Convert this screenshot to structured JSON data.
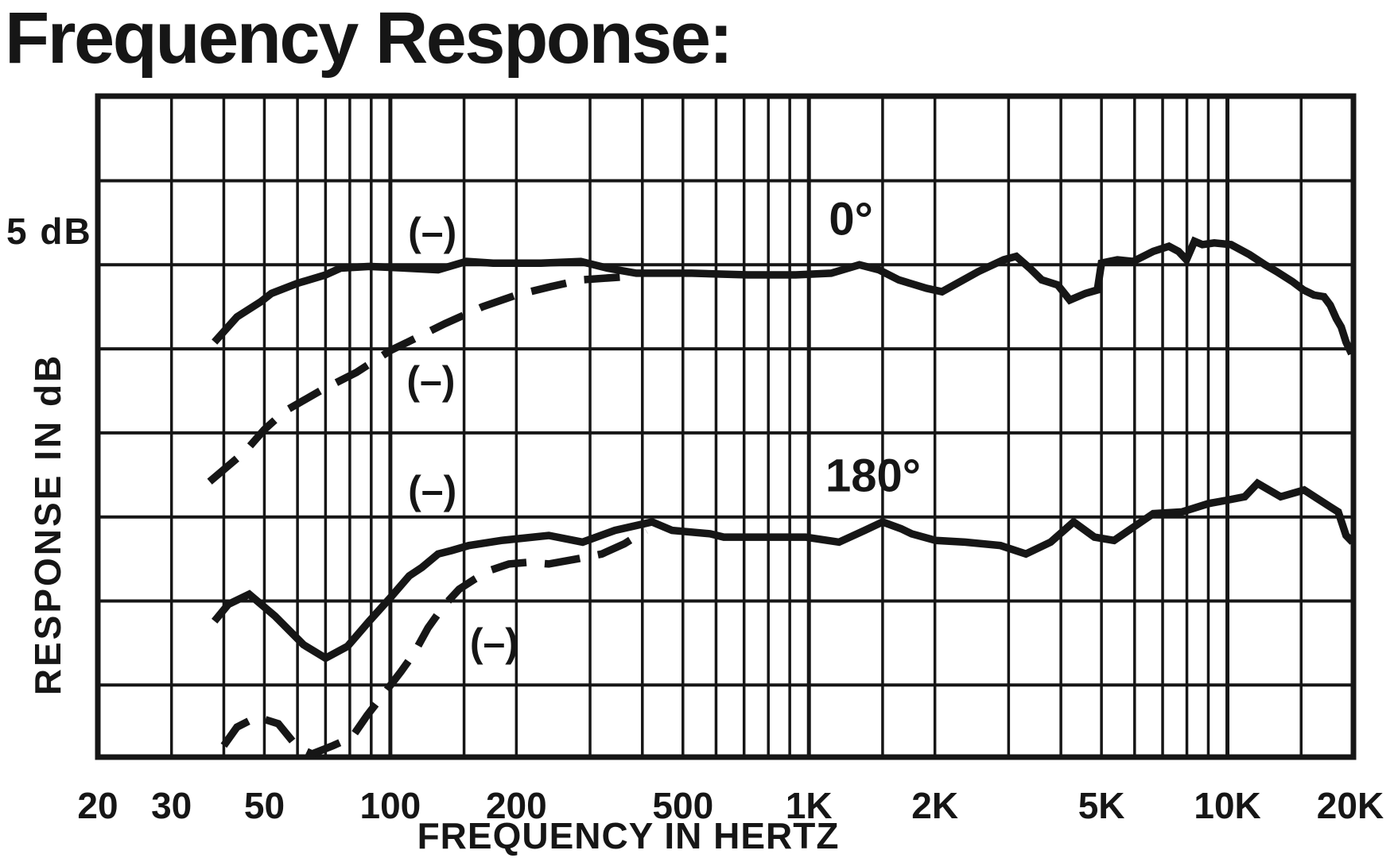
{
  "figure": {
    "title": "Frequency Response:"
  },
  "chart_data": {
    "type": "line",
    "title": "Frequency Response:",
    "xlabel": "FREQUENCY IN HERTZ",
    "ylabel": "RESPONSE IN dB",
    "scale_label": "5 dB",
    "x_scale": "log",
    "x_range_hz": [
      20,
      20000
    ],
    "y_grid_step_db": 5,
    "y_top_db": 10.03,
    "y_bottom_db": -29.3,
    "grid": "on",
    "ink_color": "#161616",
    "background_color": "#ffffff",
    "x_gridlines_hz": [
      20,
      30,
      40,
      50,
      60,
      70,
      80,
      90,
      100,
      150,
      200,
      300,
      400,
      500,
      600,
      700,
      800,
      900,
      1000,
      1500,
      2000,
      3000,
      4000,
      5000,
      6000,
      7000,
      8000,
      9000,
      10000,
      15000,
      20000
    ],
    "x_decade_lines_hz": [
      100,
      1000,
      10000
    ],
    "x_ticks": [
      {
        "label": "20",
        "f": 20
      },
      {
        "label": "30",
        "f": 30
      },
      {
        "label": "50",
        "f": 50
      },
      {
        "label": "100",
        "f": 100
      },
      {
        "label": "200",
        "f": 200
      },
      {
        "label": "500",
        "f": 500
      },
      {
        "label": "1K",
        "f": 1000
      },
      {
        "label": "2K",
        "f": 2000
      },
      {
        "label": "5K",
        "f": 5000
      },
      {
        "label": "10K",
        "f": 10000
      },
      {
        "label": "20K",
        "f": 20000
      }
    ],
    "series": [
      {
        "name": "0-degrees on-axis",
        "style": "solid",
        "points": [
          [
            38,
            -4.6
          ],
          [
            43,
            -3.1
          ],
          [
            49,
            -2.2
          ],
          [
            52,
            -1.7
          ],
          [
            60,
            -1.1
          ],
          [
            70,
            -0.6
          ],
          [
            76,
            -0.2
          ],
          [
            89,
            -0.1
          ],
          [
            109,
            -0.2
          ],
          [
            130,
            -0.3
          ],
          [
            152,
            0.2
          ],
          [
            176,
            0.1
          ],
          [
            229,
            0.1
          ],
          [
            285,
            0.2
          ],
          [
            330,
            -0.2
          ],
          [
            387,
            -0.5
          ],
          [
            525,
            -0.5
          ],
          [
            714,
            -0.6
          ],
          [
            930,
            -0.6
          ],
          [
            1130,
            -0.5
          ],
          [
            1320,
            0
          ],
          [
            1470,
            -0.3
          ],
          [
            1640,
            -0.9
          ],
          [
            1910,
            -1.4
          ],
          [
            2080,
            -1.6
          ],
          [
            2540,
            -0.4
          ],
          [
            2920,
            0.3
          ],
          [
            3130,
            0.5
          ],
          [
            3370,
            -0.2
          ],
          [
            3600,
            -0.9
          ],
          [
            3930,
            -1.2
          ],
          [
            4200,
            -2.1
          ],
          [
            4580,
            -1.7
          ],
          [
            4890,
            -1.5
          ],
          [
            5000,
            0.1
          ],
          [
            5460,
            0.3
          ],
          [
            5950,
            0.2
          ],
          [
            6650,
            0.8
          ],
          [
            7250,
            1.1
          ],
          [
            7640,
            0.8
          ],
          [
            7980,
            0.3
          ],
          [
            8340,
            1.4
          ],
          [
            8710,
            1.2
          ],
          [
            9300,
            1.3
          ],
          [
            10200,
            1.2
          ],
          [
            11300,
            0.6
          ],
          [
            12300,
            0
          ],
          [
            13100,
            -0.4
          ],
          [
            14300,
            -1
          ],
          [
            15200,
            -1.5
          ],
          [
            16100,
            -1.8
          ],
          [
            17000,
            -1.9
          ],
          [
            17600,
            -2.4
          ],
          [
            18200,
            -3.2
          ],
          [
            18700,
            -3.7
          ],
          [
            19200,
            -4.6
          ],
          [
            19800,
            -5.3
          ]
        ]
      },
      {
        "name": "0-degrees low-frequency-rolloff",
        "style": "dashed",
        "points": [
          [
            37,
            -12.9
          ],
          [
            45,
            -11.1
          ],
          [
            50,
            -9.8
          ],
          [
            56,
            -8.7
          ],
          [
            68,
            -7.5
          ],
          [
            83,
            -6.4
          ],
          [
            100,
            -5.1
          ],
          [
            110,
            -4.6
          ],
          [
            135,
            -3.5
          ],
          [
            166,
            -2.5
          ],
          [
            200,
            -1.8
          ],
          [
            242,
            -1.3
          ],
          [
            285,
            -0.9
          ],
          [
            370,
            -0.7
          ]
        ]
      },
      {
        "name": "180-degrees off-axis",
        "style": "solid",
        "points": [
          [
            38,
            -21.2
          ],
          [
            41,
            -20.2
          ],
          [
            46,
            -19.6
          ],
          [
            53,
            -20.9
          ],
          [
            62,
            -22.6
          ],
          [
            70,
            -23.4
          ],
          [
            79,
            -22.7
          ],
          [
            89,
            -21.2
          ],
          [
            100,
            -19.8
          ],
          [
            111,
            -18.5
          ],
          [
            119,
            -18
          ],
          [
            130,
            -17.2
          ],
          [
            140,
            -17
          ],
          [
            154,
            -16.7
          ],
          [
            184,
            -16.4
          ],
          [
            239,
            -16.1
          ],
          [
            288,
            -16.5
          ],
          [
            344,
            -15.8
          ],
          [
            422,
            -15.3
          ],
          [
            471,
            -15.8
          ],
          [
            581,
            -16
          ],
          [
            626,
            -16.2
          ],
          [
            736,
            -16.2
          ],
          [
            982,
            -16.2
          ],
          [
            1180,
            -16.5
          ],
          [
            1360,
            -15.8
          ],
          [
            1500,
            -15.3
          ],
          [
            1660,
            -15.7
          ],
          [
            1760,
            -16
          ],
          [
            2010,
            -16.4
          ],
          [
            2360,
            -16.5
          ],
          [
            2870,
            -16.7
          ],
          [
            3300,
            -17.2
          ],
          [
            3780,
            -16.5
          ],
          [
            4290,
            -15.3
          ],
          [
            4810,
            -16.2
          ],
          [
            5360,
            -16.4
          ],
          [
            6650,
            -14.8
          ],
          [
            7780,
            -14.7
          ],
          [
            9020,
            -14.2
          ],
          [
            10000,
            -14
          ],
          [
            11000,
            -13.8
          ],
          [
            11800,
            -13
          ],
          [
            13400,
            -13.8
          ],
          [
            15250,
            -13.4
          ],
          [
            17600,
            -14.4
          ],
          [
            18400,
            -14.7
          ],
          [
            19200,
            -16.1
          ],
          [
            19900,
            -16.5
          ]
        ]
      },
      {
        "name": "180-degrees low-frequency-rolloff",
        "style": "dashed",
        "points": [
          [
            40,
            -28.6
          ],
          [
            43,
            -27.5
          ],
          [
            48,
            -26.9
          ],
          [
            54,
            -27.3
          ],
          [
            60,
            -28.7
          ],
          [
            65,
            -29.1
          ],
          [
            73,
            -28.6
          ],
          [
            81,
            -28.1
          ],
          [
            88,
            -26.8
          ],
          [
            98,
            -25.3
          ],
          [
            106,
            -24.2
          ],
          [
            114,
            -23.1
          ],
          [
            123,
            -21.6
          ],
          [
            134,
            -20.3
          ],
          [
            146,
            -19.3
          ],
          [
            159,
            -18.7
          ],
          [
            172,
            -18.2
          ],
          [
            192,
            -17.8
          ],
          [
            214,
            -17.7
          ],
          [
            239,
            -17.8
          ],
          [
            279,
            -17.5
          ],
          [
            320,
            -17.2
          ],
          [
            362,
            -16.6
          ],
          [
            408,
            -15.8
          ]
        ]
      }
    ],
    "annotations": [
      {
        "text": "0°",
        "f": 1260,
        "db": 2.66,
        "size": 58,
        "name": "label-0-degrees"
      },
      {
        "text": "180°",
        "f": 1424,
        "db": -12.6,
        "size": 58,
        "name": "label-180-degrees"
      },
      {
        "text": "(–)",
        "f": 126,
        "db": 1.9,
        "size": 50,
        "name": "label-rolloff-mark-1"
      },
      {
        "text": "(–)",
        "f": 125,
        "db": -6.93,
        "size": 50,
        "name": "label-rolloff-mark-2"
      },
      {
        "text": "(–)",
        "f": 126,
        "db": -13.45,
        "size": 50,
        "name": "label-rolloff-mark-3"
      },
      {
        "text": "(–)",
        "f": 177,
        "db": -22.53,
        "size": 50,
        "name": "label-rolloff-mark-4"
      }
    ],
    "legend_position": "none"
  }
}
